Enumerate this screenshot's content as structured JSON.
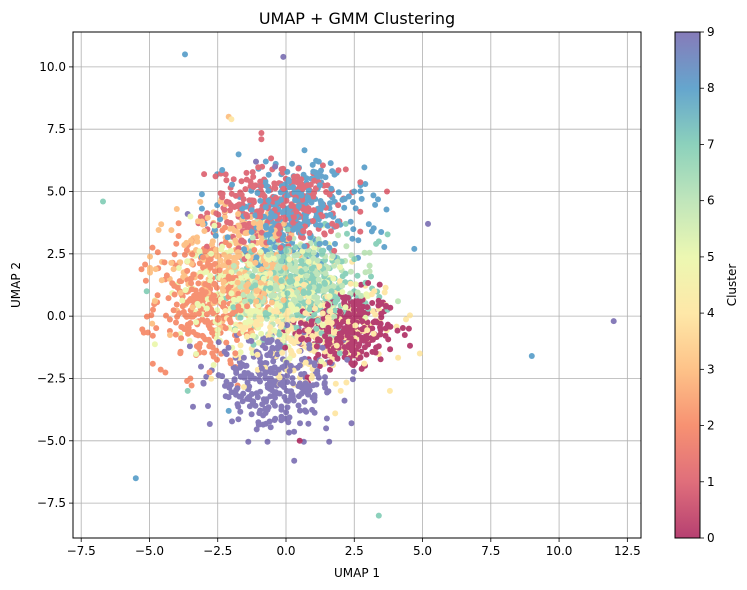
{
  "chart_data": {
    "type": "scatter",
    "title": "UMAP + GMM Clustering",
    "xlabel": "UMAP 1",
    "ylabel": "UMAP 2",
    "xlim": [
      -7.8,
      13.0
    ],
    "ylim": [
      -8.9,
      11.4
    ],
    "xticks": [
      -7.5,
      -5.0,
      -2.5,
      0.0,
      2.5,
      5.0,
      7.5,
      10.0,
      12.5
    ],
    "yticks": [
      -7.5,
      -5.0,
      -2.5,
      0.0,
      2.5,
      5.0,
      7.5,
      10.0
    ],
    "xtick_labels": [
      "−7.5",
      "−5.0",
      "−2.5",
      "0.0",
      "2.5",
      "5.0",
      "7.5",
      "10.0",
      "12.5"
    ],
    "ytick_labels": [
      "−7.5",
      "−5.0",
      "−2.5",
      "0.0",
      "2.5",
      "5.0",
      "7.5",
      "10.0"
    ],
    "grid": true,
    "colormap": "Spectral",
    "colorbar": {
      "label": "Cluster",
      "range": [
        0,
        9
      ],
      "ticks": [
        "0",
        "1",
        "2",
        "3",
        "4",
        "5",
        "6",
        "7",
        "8",
        "9"
      ]
    },
    "cluster_colors": [
      "#9e0142",
      "#d53e4f",
      "#f46d43",
      "#fdae61",
      "#fee08b",
      "#e6f598",
      "#abdda4",
      "#66c2a5",
      "#3288bd",
      "#5e4fa2"
    ],
    "clusters": [
      {
        "cluster": 0,
        "center": [
          2.2,
          -0.6
        ],
        "spread": [
          0.9,
          0.8
        ],
        "n": 300
      },
      {
        "cluster": 1,
        "center": [
          -0.4,
          4.3
        ],
        "spread": [
          1.2,
          0.8
        ],
        "n": 300
      },
      {
        "cluster": 2,
        "center": [
          -3.0,
          0.6
        ],
        "spread": [
          0.9,
          1.3
        ],
        "n": 300
      },
      {
        "cluster": 3,
        "center": [
          -1.6,
          2.1
        ],
        "spread": [
          1.3,
          1.2
        ],
        "n": 300
      },
      {
        "cluster": 4,
        "center": [
          0.9,
          -0.4
        ],
        "spread": [
          1.4,
          1.0
        ],
        "n": 300
      },
      {
        "cluster": 5,
        "center": [
          -0.9,
          0.9
        ],
        "spread": [
          1.5,
          1.1
        ],
        "n": 300
      },
      {
        "cluster": 6,
        "center": [
          0.2,
          1.5
        ],
        "spread": [
          1.1,
          0.9
        ],
        "n": 300
      },
      {
        "cluster": 7,
        "center": [
          0.6,
          1.1
        ],
        "spread": [
          1.2,
          1.0
        ],
        "n": 300
      },
      {
        "cluster": 8,
        "center": [
          0.3,
          4.1
        ],
        "spread": [
          1.3,
          1.0
        ],
        "n": 300
      },
      {
        "cluster": 9,
        "center": [
          -0.4,
          -2.7
        ],
        "spread": [
          1.2,
          0.9
        ],
        "n": 300
      }
    ],
    "outliers": [
      {
        "x": -3.7,
        "y": 10.5,
        "cluster": 8
      },
      {
        "x": -0.1,
        "y": 10.4,
        "cluster": 9
      },
      {
        "x": -2.1,
        "y": 8.0,
        "cluster": 3
      },
      {
        "x": -2.0,
        "y": 7.9,
        "cluster": 4
      },
      {
        "x": -0.9,
        "y": 7.35,
        "cluster": 1
      },
      {
        "x": -0.9,
        "y": 7.1,
        "cluster": 1
      },
      {
        "x": -6.7,
        "y": 4.6,
        "cluster": 7
      },
      {
        "x": 12.0,
        "y": -0.2,
        "cluster": 9
      },
      {
        "x": 9.0,
        "y": -1.6,
        "cluster": 8
      },
      {
        "x": -5.5,
        "y": -6.5,
        "cluster": 8
      },
      {
        "x": 3.4,
        "y": -8.0,
        "cluster": 7
      },
      {
        "x": 0.5,
        "y": -5.0,
        "cluster": 0
      },
      {
        "x": 0.3,
        "y": -5.8,
        "cluster": 9
      },
      {
        "x": 5.2,
        "y": 3.7,
        "cluster": 9
      },
      {
        "x": 4.7,
        "y": 2.7,
        "cluster": 8
      },
      {
        "x": 3.7,
        "y": 5.0,
        "cluster": 1
      },
      {
        "x": 3.4,
        "y": 3.0,
        "cluster": 7
      },
      {
        "x": 3.3,
        "y": 2.9,
        "cluster": 7
      },
      {
        "x": 4.5,
        "y": -0.5,
        "cluster": 0
      },
      {
        "x": 4.9,
        "y": -1.5,
        "cluster": 4
      },
      {
        "x": 2.4,
        "y": -4.3,
        "cluster": 9
      },
      {
        "x": 1.8,
        "y": -3.9,
        "cluster": 4
      },
      {
        "x": -2.1,
        "y": -3.8,
        "cluster": 8
      },
      {
        "x": -3.5,
        "y": -2.5,
        "cluster": 2
      },
      {
        "x": -3.6,
        "y": -3.0,
        "cluster": 7
      },
      {
        "x": -4.0,
        "y": 4.3,
        "cluster": 3
      },
      {
        "x": -3.6,
        "y": 4.1,
        "cluster": 9
      },
      {
        "x": -3.5,
        "y": 4.0,
        "cluster": 5
      },
      {
        "x": -5.1,
        "y": 1.0,
        "cluster": 7
      },
      {
        "x": -4.8,
        "y": 0.6,
        "cluster": 3
      },
      {
        "x": -4.9,
        "y": -0.3,
        "cluster": 3
      },
      {
        "x": 1.2,
        "y": 6.2,
        "cluster": 8
      },
      {
        "x": 1.0,
        "y": 5.8,
        "cluster": 8
      },
      {
        "x": 0.3,
        "y": 5.6,
        "cluster": 1
      },
      {
        "x": -1.1,
        "y": 6.2,
        "cluster": 9
      },
      {
        "x": -0.4,
        "y": 6.0,
        "cluster": 9
      },
      {
        "x": -3.0,
        "y": 5.7,
        "cluster": 1
      },
      {
        "x": 2.5,
        "y": 5.0,
        "cluster": 8
      },
      {
        "x": 2.3,
        "y": 4.8,
        "cluster": 8
      },
      {
        "x": 4.1,
        "y": 0.6,
        "cluster": 6
      }
    ]
  }
}
